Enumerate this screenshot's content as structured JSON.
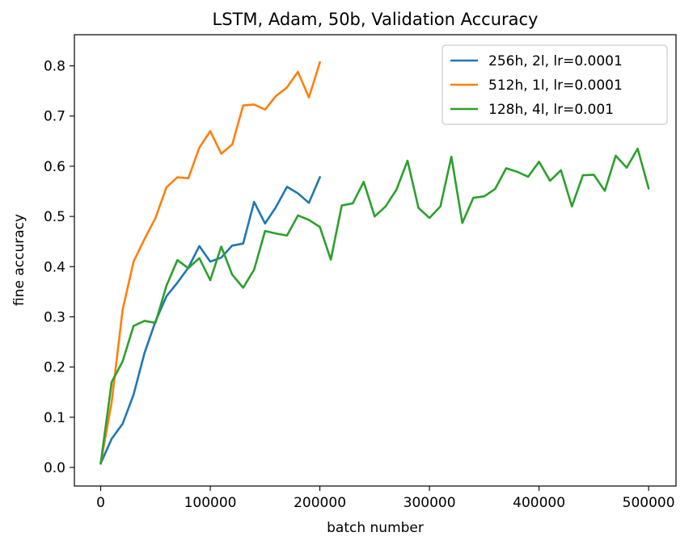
{
  "chart_data": {
    "type": "line",
    "title": "LSTM, Adam, 50b, Validation Accuracy",
    "xlabel": "batch number",
    "ylabel": "fine accuracy",
    "xlim": [
      -24000,
      525000
    ],
    "ylim": [
      -0.037,
      0.862
    ],
    "xticks": [
      0,
      100000,
      200000,
      300000,
      400000,
      500000
    ],
    "xtick_labels": [
      "0",
      "100000",
      "200000",
      "300000",
      "400000",
      "500000"
    ],
    "yticks": [
      0.0,
      0.1,
      0.2,
      0.3,
      0.4,
      0.5,
      0.6,
      0.7,
      0.8
    ],
    "ytick_labels": [
      "0.0",
      "0.1",
      "0.2",
      "0.3",
      "0.4",
      "0.5",
      "0.6",
      "0.7",
      "0.8"
    ],
    "grid": false,
    "legend_position": "top-right",
    "series": [
      {
        "name": "256h, 2l, lr=0.0001",
        "color": "#1f77b4",
        "x": [
          0,
          10000,
          20000,
          30000,
          40000,
          50000,
          60000,
          70000,
          80000,
          90000,
          100000,
          110000,
          120000,
          130000,
          140000,
          150000,
          160000,
          170000,
          180000,
          190000,
          200000
        ],
        "y": [
          0.008,
          0.057,
          0.087,
          0.145,
          0.228,
          0.291,
          0.341,
          0.368,
          0.398,
          0.441,
          0.41,
          0.418,
          0.442,
          0.446,
          0.529,
          0.486,
          0.519,
          0.559,
          0.546,
          0.527,
          0.578
        ]
      },
      {
        "name": "512h, 1l, lr=0.0001",
        "color": "#ff7f0e",
        "x": [
          0,
          10000,
          20000,
          30000,
          40000,
          50000,
          60000,
          70000,
          80000,
          90000,
          100000,
          110000,
          120000,
          130000,
          140000,
          150000,
          160000,
          170000,
          180000,
          190000,
          200000
        ],
        "y": [
          0.008,
          0.13,
          0.314,
          0.41,
          0.455,
          0.497,
          0.558,
          0.578,
          0.576,
          0.637,
          0.67,
          0.625,
          0.643,
          0.721,
          0.723,
          0.713,
          0.74,
          0.757,
          0.788,
          0.737,
          0.807
        ]
      },
      {
        "name": "128h, 4l, lr=0.001",
        "color": "#2ca02c",
        "x": [
          0,
          10000,
          20000,
          30000,
          40000,
          50000,
          60000,
          70000,
          80000,
          90000,
          100000,
          110000,
          120000,
          130000,
          140000,
          150000,
          160000,
          170000,
          180000,
          190000,
          200000,
          210000,
          220000,
          230000,
          240000,
          250000,
          260000,
          270000,
          280000,
          290000,
          300000,
          310000,
          320000,
          330000,
          340000,
          350000,
          360000,
          370000,
          380000,
          390000,
          400000,
          410000,
          420000,
          430000,
          440000,
          450000,
          460000,
          470000,
          480000,
          490000,
          500000
        ],
        "y": [
          0.008,
          0.17,
          0.211,
          0.282,
          0.292,
          0.288,
          0.362,
          0.413,
          0.397,
          0.417,
          0.373,
          0.44,
          0.384,
          0.358,
          0.394,
          0.471,
          0.466,
          0.462,
          0.502,
          0.493,
          0.479,
          0.414,
          0.522,
          0.526,
          0.569,
          0.5,
          0.52,
          0.554,
          0.611,
          0.517,
          0.497,
          0.52,
          0.619,
          0.487,
          0.537,
          0.54,
          0.555,
          0.596,
          0.589,
          0.579,
          0.609,
          0.571,
          0.592,
          0.52,
          0.582,
          0.583,
          0.551,
          0.621,
          0.597,
          0.635,
          0.556
        ]
      }
    ]
  }
}
